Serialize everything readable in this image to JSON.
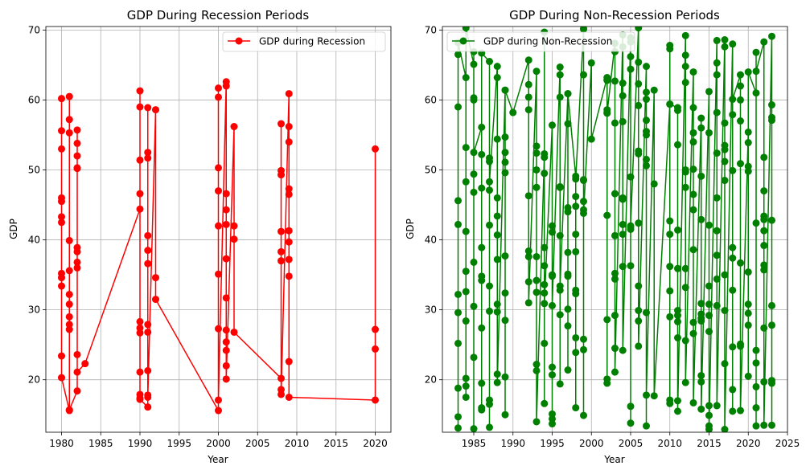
{
  "chart_data": [
    {
      "type": "line",
      "title": "GDP During Recession Periods",
      "xlabel": "Year",
      "ylabel": "GDP",
      "xlim": [
        1978,
        2022
      ],
      "ylim": [
        12.5,
        70.5
      ],
      "xticks": [
        1980,
        1985,
        1990,
        1995,
        2000,
        2005,
        2010,
        2015,
        2020
      ],
      "yticks": [
        20,
        30,
        40,
        50,
        60,
        70
      ],
      "grid": true,
      "legend_position": "upper-right",
      "color": "#ff0000",
      "marker": "circle",
      "series": [
        {
          "name": "GDP during Recession",
          "points": [
            [
              1980,
              23.4
            ],
            [
              1980,
              60.2
            ],
            [
              1980,
              55.6
            ],
            [
              1980,
              53.0
            ],
            [
              1980,
              46.0
            ],
            [
              1980,
              45.5
            ],
            [
              1980,
              43.3
            ],
            [
              1980,
              42.5
            ],
            [
              1980,
              35.2
            ],
            [
              1980,
              34.6
            ],
            [
              1980,
              33.4
            ],
            [
              1980,
              20.3
            ],
            [
              1981,
              15.6
            ],
            [
              1981,
              60.5
            ],
            [
              1981,
              57.2
            ],
            [
              1981,
              55.3
            ],
            [
              1981,
              39.9
            ],
            [
              1981,
              35.6
            ],
            [
              1981,
              32.2
            ],
            [
              1981,
              30.8
            ],
            [
              1981,
              29.0
            ],
            [
              1981,
              27.9
            ],
            [
              1981,
              27.2
            ],
            [
              1981,
              15.7
            ],
            [
              1982,
              18.4
            ],
            [
              1982,
              55.7
            ],
            [
              1982,
              53.8
            ],
            [
              1982,
              52.0
            ],
            [
              1982,
              50.3
            ],
            [
              1982,
              50.2
            ],
            [
              1982,
              38.9
            ],
            [
              1982,
              38.3
            ],
            [
              1982,
              36.8
            ],
            [
              1982,
              36.0
            ],
            [
              1982,
              23.6
            ],
            [
              1982,
              21.1
            ],
            [
              1983,
              22.3
            ],
            [
              1990,
              44.4
            ],
            [
              1990,
              61.3
            ],
            [
              1990,
              59.0
            ],
            [
              1990,
              51.4
            ],
            [
              1990,
              46.6
            ],
            [
              1990,
              28.3
            ],
            [
              1990,
              27.4
            ],
            [
              1990,
              26.7
            ],
            [
              1990,
              21.1
            ],
            [
              1990,
              17.9
            ],
            [
              1990,
              17.4
            ],
            [
              1990,
              17.2
            ],
            [
              1991,
              16.1
            ],
            [
              1991,
              58.9
            ],
            [
              1991,
              52.5
            ],
            [
              1991,
              51.7
            ],
            [
              1991,
              40.6
            ],
            [
              1991,
              38.5
            ],
            [
              1991,
              36.6
            ],
            [
              1991,
              27.9
            ],
            [
              1991,
              26.8
            ],
            [
              1991,
              21.3
            ],
            [
              1991,
              17.8
            ],
            [
              1991,
              17.5
            ],
            [
              1992,
              58.6
            ],
            [
              1992,
              34.6
            ],
            [
              1992,
              31.5
            ],
            [
              2000,
              15.6
            ],
            [
              2000,
              61.7
            ],
            [
              2000,
              60.4
            ],
            [
              2000,
              50.3
            ],
            [
              2000,
              47.0
            ],
            [
              2000,
              42.0
            ],
            [
              2000,
              35.1
            ],
            [
              2000,
              27.3
            ],
            [
              2000,
              17.1
            ],
            [
              2001,
              62.6
            ],
            [
              2001,
              62.0
            ],
            [
              2001,
              46.6
            ],
            [
              2001,
              44.3
            ],
            [
              2001,
              42.2
            ],
            [
              2001,
              37.3
            ],
            [
              2001,
              31.7
            ],
            [
              2001,
              27.1
            ],
            [
              2001,
              25.4
            ],
            [
              2001,
              24.2
            ],
            [
              2001,
              22.0
            ],
            [
              2001,
              20.1
            ],
            [
              2002,
              56.2
            ],
            [
              2002,
              42.0
            ],
            [
              2002,
              40.1
            ],
            [
              2002,
              26.8
            ],
            [
              2008,
              20.2
            ],
            [
              2008,
              56.6
            ],
            [
              2008,
              49.9
            ],
            [
              2008,
              49.3
            ],
            [
              2008,
              41.2
            ],
            [
              2008,
              38.3
            ],
            [
              2008,
              37.0
            ],
            [
              2008,
              18.6
            ],
            [
              2008,
              17.9
            ],
            [
              2009,
              60.9
            ],
            [
              2009,
              56.2
            ],
            [
              2009,
              54.0
            ],
            [
              2009,
              47.3
            ],
            [
              2009,
              46.5
            ],
            [
              2009,
              41.3
            ],
            [
              2009,
              39.7
            ],
            [
              2009,
              37.2
            ],
            [
              2009,
              34.8
            ],
            [
              2009,
              22.6
            ],
            [
              2009,
              17.5
            ],
            [
              2020,
              17.1
            ],
            [
              2020,
              53.0
            ],
            [
              2020,
              27.2
            ],
            [
              2020,
              24.4
            ]
          ]
        }
      ]
    },
    {
      "type": "line",
      "title": "GDP During Non-Recession Periods",
      "xlabel": "Year",
      "ylabel": "GDP",
      "xlim": [
        1981,
        2025
      ],
      "ylim": [
        12.5,
        70.5
      ],
      "xticks": [
        1985,
        1990,
        1995,
        2000,
        2005,
        2010,
        2015,
        2020,
        2025
      ],
      "yticks": [
        20,
        30,
        40,
        50,
        60,
        70
      ],
      "grid": true,
      "legend_position": "upper-left",
      "color": "#008000",
      "marker": "circle",
      "series": [
        {
          "name": "GDP during Non-Recession",
          "x": [
            1983,
            1984,
            1985,
            1986,
            1987,
            1988,
            1989,
            1990,
            1992,
            1993,
            1994,
            1995,
            1996,
            1997,
            1998,
            1999,
            2000,
            2002,
            2003,
            2004,
            2005,
            2006,
            2007,
            2008,
            2010,
            2011,
            2012,
            2013,
            2014,
            2015,
            2016,
            2017,
            2018,
            2019,
            2020,
            2021,
            2022,
            2023
          ],
          "values": [
            [
              66.5,
              59.0,
              45.6,
              42.2,
              32.2,
              29.6,
              25.2,
              18.8,
              14.7,
              13.1,
              68.2
            ],
            [
              63.2,
              53.2,
              48.3,
              41.2,
              35.5,
              32.6,
              28.4,
              20.2,
              19.1,
              17.5,
              70.3
            ],
            [
              65.1,
              60.0,
              49.4,
              46.8,
              36.8,
              30.5,
              23.2,
              13.0,
              66.9,
              60.3,
              52.5
            ],
            [
              56.1,
              52.2,
              47.4,
              38.9,
              34.8,
              34.2,
              27.4,
              19.5,
              16.0,
              15.7,
              66.7
            ],
            [
              65.5,
              51.7,
              47.1,
              42.1,
              33.4,
              29.8,
              17.1,
              16.5,
              13.2,
              51.2,
              48.3
            ],
            [
              64.8,
              63.2,
              54.4,
              46.0,
              43.4,
              40.7,
              37.2,
              30.8,
              29.7,
              20.8,
              19.6
            ],
            [
              61.4,
              54.7,
              52.5,
              51.1,
              49.6,
              37.7,
              32.4,
              28.5,
              20.4,
              15.0,
              61.4
            ],
            [
              58.2
            ],
            [
              65.7,
              62.2,
              60.4,
              58.6,
              46.3,
              38.4,
              37.6,
              34.0,
              31.0
            ],
            [
              64.1,
              53.4,
              52.4,
              50.0,
              47.5,
              37.6,
              34.2,
              32.5,
              22.2,
              21.3,
              14.0
            ],
            [
              52.3,
              51.8,
              49.5,
              38.9,
              36.3,
              33.6,
              32.4,
              25.2,
              16.6,
              69.7,
              30.9
            ],
            [
              56.4,
              42.0,
              41.1,
              35.0,
              21.8,
              20.7,
              15.1,
              14.4,
              13.7,
              34.8,
              30.6
            ],
            [
              64.7,
              63.6,
              60.4,
              47.6,
              40.6,
              32.8,
              29.3,
              19.4,
              47.5,
              33.4
            ],
            [
              60.9,
              56.6,
              44.6,
              44.0,
              38.2,
              35.1,
              34.8,
              30.1,
              27.7,
              21.4,
              60.9
            ],
            [
              49.1,
              46.2,
              44.8,
              40.8,
              38.3,
              32.8,
              32.3,
              26.0,
              23.9,
              16.0,
              48.7
            ],
            [
              70.1,
              63.6,
              48.5,
              45.5,
              44.3,
              25.8,
              24.3,
              14.9,
              70.2,
              48.6,
              43.8
            ],
            [
              65.3,
              54.4
            ],
            [
              63.2,
              62.8,
              58.6,
              58.2,
              43.5,
              28.6,
              20.1,
              19.5,
              62.9,
              58.1
            ],
            [
              68.1,
              66.9,
              62.7,
              56.7,
              46.6,
              40.6,
              35.2,
              34.4,
              29.2,
              24.5,
              21.1
            ],
            [
              69.3,
              67.6,
              62.4,
              60.6,
              56.9,
              46.0,
              45.8,
              42.2,
              40.8,
              36.2,
              24.2
            ],
            [
              68.9,
              66.2,
              64.4,
              49.0,
              41.8,
              41.5,
              36.3,
              16.2,
              13.8,
              68.3,
              42.0
            ],
            [
              70.3,
              65.4,
              62.3,
              59.2,
              52.7,
              52.3,
              42.4,
              33.4,
              29.9,
              28.4,
              24.8
            ],
            [
              64.8,
              61.1,
              60.1,
              57.1,
              55.5,
              55.0,
              51.5,
              50.6,
              29.6,
              13.4,
              17.8
            ],
            [
              61.4,
              48.0,
              17.7
            ],
            [
              59.4,
              42.7,
              40.8,
              36.2,
              32.7,
              29.0,
              17.1,
              16.6,
              67.8,
              67.3,
              59.4
            ],
            [
              58.9,
              58.5,
              53.6,
              41.4,
              35.9,
              29.9,
              29.2,
              28.3,
              26.0,
              17.0,
              15.5
            ],
            [
              69.2,
              66.4,
              64.8,
              62.5,
              50.0,
              49.7,
              47.5,
              35.9,
              33.2,
              25.6,
              19.6
            ],
            [
              64.0,
              58.9,
              55.3,
              54.0,
              50.1,
              46.5,
              44.3,
              38.6,
              28.2,
              26.6,
              16.7
            ],
            [
              57.4,
              56.0,
              49.1,
              42.9,
              30.9,
              29.4,
              28.8,
              28.4,
              20.6,
              19.7,
              15.8
            ],
            [
              61.2,
              55.3,
              42.1,
              33.4,
              30.8,
              29.2,
              26.9,
              16.3,
              14.9,
              13.4,
              12.9
            ],
            [
              68.5,
              65.3,
              63.6,
              58.2,
              52.4,
              46.0,
              41.3,
              37.8,
              34.4,
              30.6,
              16.3
            ],
            [
              68.6,
              67.6,
              56.7,
              53.5,
              52.9,
              51.2,
              48.5,
              35.0,
              29.9,
              22.3,
              12.9
            ],
            [
              68.0,
              57.9,
              49.9,
              38.9,
              37.4,
              32.8,
              24.7,
              18.6,
              15.5,
              60.1
            ],
            [
              63.6,
              62.0,
              60.0,
              57.0,
              50.9,
              36.7,
              25.1,
              24.8,
              15.6
            ],
            [
              55.4,
              53.9,
              50.5,
              49.8,
              35.4,
              30.8,
              29.5,
              27.8,
              20.5,
              64.0
            ],
            [
              61.0,
              42.4,
              24.2,
              22.4,
              19.0,
              16.0,
              13.4,
              66.8,
              64.1
            ],
            [
              68.3,
              51.8,
              47.0,
              43.4,
              42.9,
              41.3,
              39.2,
              36.4,
              35.7,
              27.4,
              19.7,
              13.5
            ],
            [
              69.1,
              59.3,
              57.5,
              57.1,
              42.8,
              30.6,
              27.8,
              19.9,
              19.5,
              13.5
            ]
          ]
        }
      ]
    }
  ]
}
